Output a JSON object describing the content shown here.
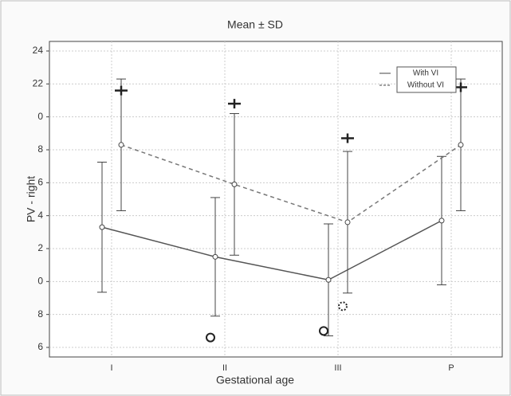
{
  "chart_data": {
    "type": "errorbar-line",
    "title": "Mean ± SD",
    "x_label": "Gestational age",
    "y_label": "PV - right",
    "categories": [
      "I",
      "II",
      "III",
      "P"
    ],
    "series": [
      {
        "name": "With VI",
        "color": "#555555",
        "line": "solid",
        "values": [
          13.3,
          11.5,
          10.1,
          13.7
        ],
        "sd": [
          3.95,
          3.6,
          3.4,
          3.9
        ],
        "outliers": [
          null,
          6.6,
          7.0,
          null
        ]
      },
      {
        "name": "Without VI",
        "color": "#777777",
        "line": "dashed",
        "values": [
          18.3,
          15.9,
          13.6,
          18.3
        ],
        "sd": [
          4.0,
          4.3,
          4.3,
          4.0
        ],
        "extremes": [
          21.6,
          20.8,
          18.7,
          21.8
        ],
        "outliers": [
          null,
          null,
          8.5,
          null
        ]
      }
    ],
    "ylim": [
      6,
      24
    ],
    "yticks": [
      24,
      22,
      {
        "value": 20,
        "label": "0"
      },
      {
        "value": 18,
        "label": "8"
      },
      {
        "value": 16,
        "label": "6"
      },
      {
        "value": 14,
        "label": "4"
      },
      {
        "value": 12,
        "label": "2"
      },
      {
        "value": 10,
        "label": "0"
      },
      {
        "value": 8,
        "label": "8"
      },
      {
        "value": 6,
        "label": "6"
      }
    ],
    "grid": true,
    "legend": "top-right"
  }
}
